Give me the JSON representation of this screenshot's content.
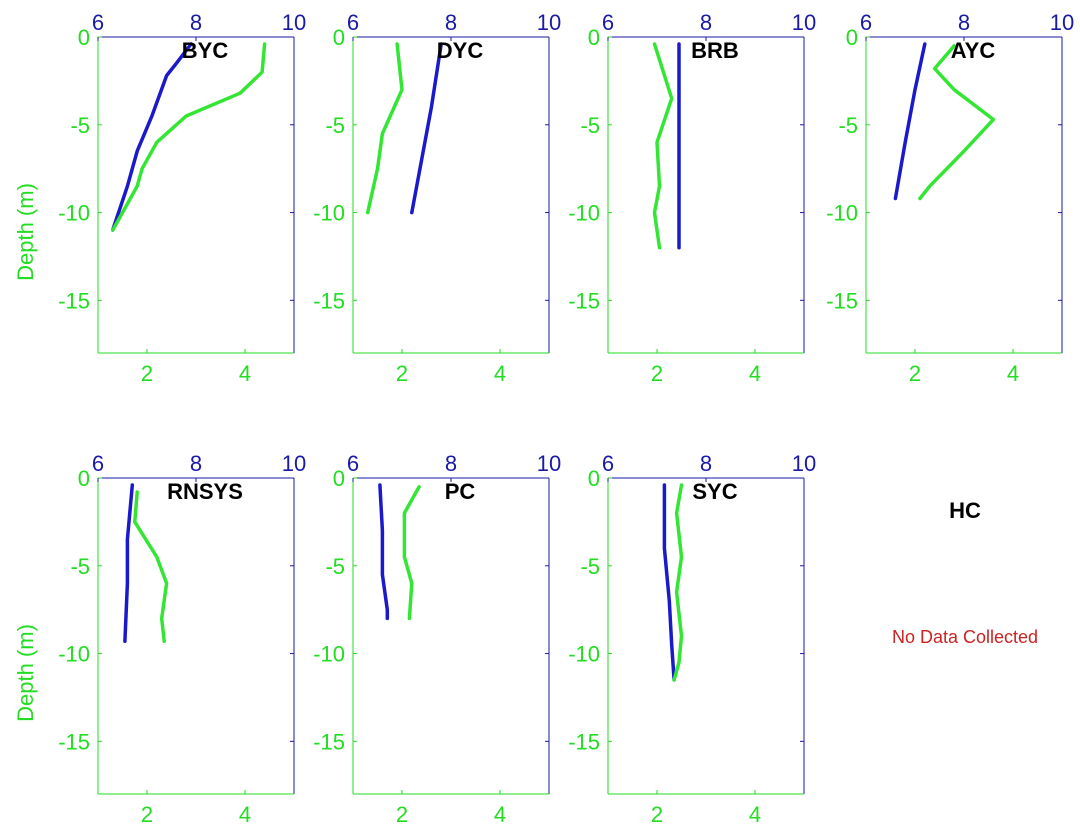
{
  "colors": {
    "top_axis": "#1a1aa6",
    "bottom_axis": "#22dd22",
    "frame": "#1a1aa6",
    "blue_line": "#1a1acc",
    "green_line": "#33e633",
    "note": "#cc2222"
  },
  "empty_panel": {
    "title": "HC",
    "note": "No Data Collected"
  },
  "chart_data": [
    {
      "type": "line",
      "title": "BYC",
      "ylabel": "Depth (m)",
      "ylim": [
        -18,
        0
      ],
      "yticks": [
        "0",
        "-5",
        "-10",
        "-15"
      ],
      "top_xlim": [
        6,
        10
      ],
      "top_xticks": [
        "6",
        "8",
        "10"
      ],
      "bottom_xlim": [
        1,
        5
      ],
      "bottom_xticks": [
        "2",
        "4"
      ],
      "series": [
        {
          "axis": "top",
          "color": "blue",
          "points": [
            [
              7.9,
              -0.4
            ],
            [
              7.6,
              -1.5
            ],
            [
              7.4,
              -2.2
            ],
            [
              7.1,
              -4.5
            ],
            [
              6.8,
              -6.5
            ],
            [
              6.6,
              -8.5
            ],
            [
              6.3,
              -11.0
            ]
          ]
        },
        {
          "axis": "bottom",
          "color": "green",
          "points": [
            [
              4.4,
              -0.4
            ],
            [
              4.35,
              -2.0
            ],
            [
              3.9,
              -3.2
            ],
            [
              2.8,
              -4.5
            ],
            [
              2.2,
              -6.0
            ],
            [
              1.9,
              -7.5
            ],
            [
              1.8,
              -8.5
            ],
            [
              1.5,
              -10.0
            ],
            [
              1.3,
              -11.0
            ]
          ]
        }
      ]
    },
    {
      "type": "line",
      "title": "DYC",
      "ylim": [
        -18,
        0
      ],
      "yticks": [
        "0",
        "-5",
        "-10",
        "-15"
      ],
      "top_xlim": [
        6,
        10
      ],
      "top_xticks": [
        "6",
        "8",
        "10"
      ],
      "bottom_xlim": [
        1,
        5
      ],
      "bottom_xticks": [
        "2",
        "4"
      ],
      "series": [
        {
          "axis": "top",
          "color": "blue",
          "points": [
            [
              7.8,
              -0.4
            ],
            [
              7.6,
              -4.0
            ],
            [
              7.4,
              -7.0
            ],
            [
              7.2,
              -10.0
            ]
          ]
        },
        {
          "axis": "bottom",
          "color": "green",
          "points": [
            [
              1.9,
              -0.4
            ],
            [
              2.0,
              -3.0
            ],
            [
              1.6,
              -5.5
            ],
            [
              1.5,
              -7.5
            ],
            [
              1.3,
              -10.0
            ]
          ]
        }
      ]
    },
    {
      "type": "line",
      "title": "BRB",
      "ylim": [
        -18,
        0
      ],
      "yticks": [
        "0",
        "-5",
        "-10",
        "-15"
      ],
      "top_xlim": [
        6,
        10
      ],
      "top_xticks": [
        "6",
        "8",
        "10"
      ],
      "bottom_xlim": [
        1,
        5
      ],
      "bottom_xticks": [
        "2",
        "4"
      ],
      "series": [
        {
          "axis": "top",
          "color": "blue",
          "points": [
            [
              7.45,
              -0.4
            ],
            [
              7.45,
              -12.0
            ]
          ]
        },
        {
          "axis": "bottom",
          "color": "green",
          "points": [
            [
              1.95,
              -0.4
            ],
            [
              2.3,
              -3.5
            ],
            [
              2.0,
              -6.0
            ],
            [
              2.05,
              -8.5
            ],
            [
              1.95,
              -10.0
            ],
            [
              2.05,
              -12.0
            ]
          ]
        }
      ]
    },
    {
      "type": "line",
      "title": "AYC",
      "ylim": [
        -18,
        0
      ],
      "yticks": [
        "0",
        "-5",
        "-10",
        "-15"
      ],
      "top_xlim": [
        6,
        10
      ],
      "top_xticks": [
        "6",
        "8",
        "10"
      ],
      "bottom_xlim": [
        1,
        5
      ],
      "bottom_xticks": [
        "2",
        "4"
      ],
      "series": [
        {
          "axis": "top",
          "color": "blue",
          "points": [
            [
              7.2,
              -0.4
            ],
            [
              7.0,
              -3.0
            ],
            [
              6.8,
              -6.0
            ],
            [
              6.6,
              -9.2
            ]
          ]
        },
        {
          "axis": "bottom",
          "color": "green",
          "points": [
            [
              2.8,
              -0.5
            ],
            [
              2.4,
              -1.8
            ],
            [
              2.8,
              -3.0
            ],
            [
              3.6,
              -4.7
            ],
            [
              3.0,
              -6.5
            ],
            [
              2.3,
              -8.5
            ],
            [
              2.1,
              -9.2
            ]
          ]
        }
      ]
    },
    {
      "type": "line",
      "title": "RNSYS",
      "ylabel": "Depth (m)",
      "ylim": [
        -18,
        0
      ],
      "yticks": [
        "0",
        "-5",
        "-10",
        "-15"
      ],
      "top_xlim": [
        6,
        10
      ],
      "top_xticks": [
        "6",
        "8",
        "10"
      ],
      "bottom_xlim": [
        1,
        5
      ],
      "bottom_xticks": [
        "2",
        "4"
      ],
      "series": [
        {
          "axis": "top",
          "color": "blue",
          "points": [
            [
              6.7,
              -0.4
            ],
            [
              6.6,
              -3.5
            ],
            [
              6.6,
              -6.0
            ],
            [
              6.55,
              -9.3
            ]
          ]
        },
        {
          "axis": "bottom",
          "color": "green",
          "points": [
            [
              1.8,
              -0.8
            ],
            [
              1.75,
              -2.5
            ],
            [
              2.2,
              -4.5
            ],
            [
              2.4,
              -6.0
            ],
            [
              2.3,
              -8.0
            ],
            [
              2.35,
              -9.3
            ]
          ]
        }
      ]
    },
    {
      "type": "line",
      "title": "PC",
      "ylim": [
        -18,
        0
      ],
      "yticks": [
        "0",
        "-5",
        "-10",
        "-15"
      ],
      "top_xlim": [
        6,
        10
      ],
      "top_xticks": [
        "6",
        "8",
        "10"
      ],
      "bottom_xlim": [
        1,
        5
      ],
      "bottom_xticks": [
        "2",
        "4"
      ],
      "series": [
        {
          "axis": "top",
          "color": "blue",
          "points": [
            [
              6.55,
              -0.4
            ],
            [
              6.6,
              -3.0
            ],
            [
              6.6,
              -5.5
            ],
            [
              6.7,
              -7.5
            ],
            [
              6.7,
              -8.0
            ]
          ]
        },
        {
          "axis": "bottom",
          "color": "green",
          "points": [
            [
              2.35,
              -0.5
            ],
            [
              2.05,
              -2.0
            ],
            [
              2.05,
              -4.5
            ],
            [
              2.2,
              -6.0
            ],
            [
              2.15,
              -8.0
            ]
          ]
        }
      ]
    },
    {
      "type": "line",
      "title": "SYC",
      "ylim": [
        -18,
        0
      ],
      "yticks": [
        "0",
        "-5",
        "-10",
        "-15"
      ],
      "top_xlim": [
        6,
        10
      ],
      "top_xticks": [
        "6",
        "8",
        "10"
      ],
      "bottom_xlim": [
        1,
        5
      ],
      "bottom_xticks": [
        "2",
        "4"
      ],
      "series": [
        {
          "axis": "top",
          "color": "blue",
          "points": [
            [
              7.15,
              -0.4
            ],
            [
              7.15,
              -4.0
            ],
            [
              7.25,
              -7.0
            ],
            [
              7.3,
              -9.5
            ],
            [
              7.35,
              -11.5
            ]
          ]
        },
        {
          "axis": "bottom",
          "color": "green",
          "points": [
            [
              2.5,
              -0.4
            ],
            [
              2.4,
              -2.0
            ],
            [
              2.5,
              -4.5
            ],
            [
              2.4,
              -6.5
            ],
            [
              2.5,
              -9.0
            ],
            [
              2.45,
              -10.5
            ],
            [
              2.35,
              -11.5
            ]
          ]
        }
      ]
    }
  ]
}
